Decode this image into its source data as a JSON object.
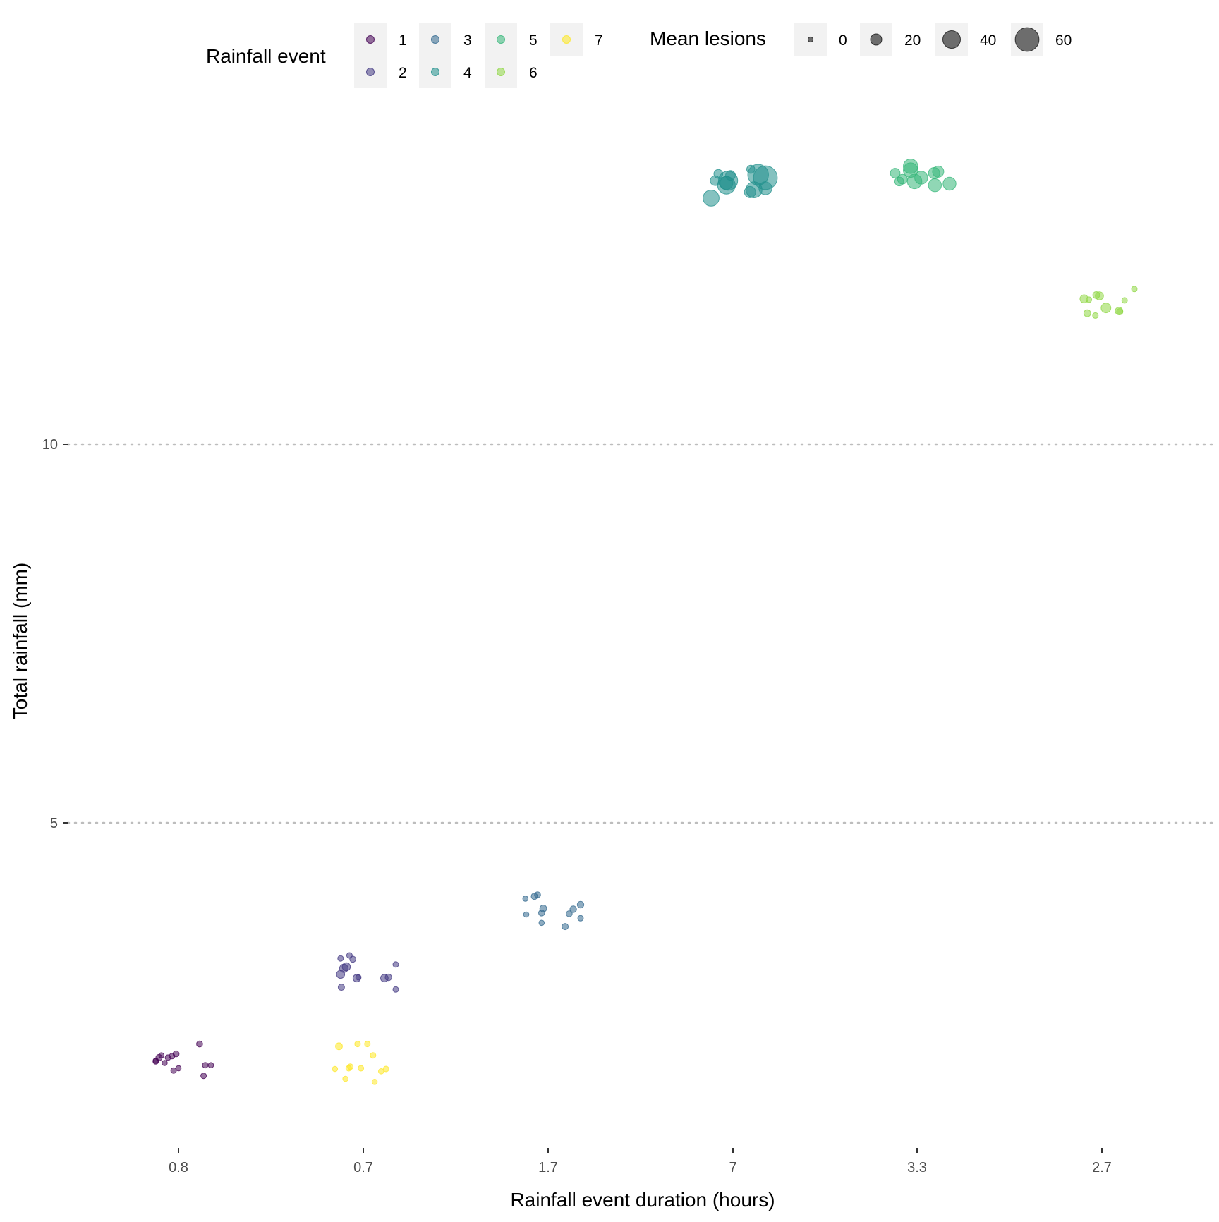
{
  "chart_data": {
    "type": "scatter",
    "title": "",
    "xlabel": "Rainfall event duration (hours)",
    "ylabel": "Total rainfall (mm)",
    "x_categories": [
      "0.8",
      "0.7",
      "1.7",
      "7",
      "3.3",
      "2.7"
    ],
    "y_ticks": [
      5,
      10
    ],
    "ylim": [
      0.5,
      15.2
    ],
    "grid": "horizontal dotted major lines only",
    "legend_position": "top",
    "color_legend": {
      "title": "Rainfall event",
      "entries": [
        {
          "label": "1",
          "color": "#440154"
        },
        {
          "label": "2",
          "color": "#443A83"
        },
        {
          "label": "3",
          "color": "#31688E"
        },
        {
          "label": "4",
          "color": "#21908C"
        },
        {
          "label": "5",
          "color": "#35B779"
        },
        {
          "label": "6",
          "color": "#8FD744"
        },
        {
          "label": "7",
          "color": "#FDE725"
        }
      ]
    },
    "size_legend": {
      "title": "Mean lesions",
      "entries": [
        {
          "label": "0",
          "value": 0
        },
        {
          "label": "20",
          "value": 20
        },
        {
          "label": "40",
          "value": 40
        },
        {
          "label": "60",
          "value": 60
        }
      ]
    },
    "series": [
      {
        "event": "1",
        "x_category": "0.8",
        "points": [
          {
            "x": 0.8,
            "y": 1.8,
            "lesions": 2
          },
          {
            "x": 0.8,
            "y": 1.95,
            "lesions": 3
          },
          {
            "x": 0.8,
            "y": 1.76,
            "lesions": 1
          },
          {
            "x": 0.8,
            "y": 1.85,
            "lesions": 2
          },
          {
            "x": 0.8,
            "y": 1.93,
            "lesions": 1
          },
          {
            "x": 0.8,
            "y": 1.9,
            "lesions": 4
          },
          {
            "x": 0.8,
            "y": 1.9,
            "lesions": 2
          },
          {
            "x": 0.8,
            "y": 1.83,
            "lesions": 1
          },
          {
            "x": 0.8,
            "y": 1.86,
            "lesions": 1
          },
          {
            "x": 0.8,
            "y": 1.8,
            "lesions": 1
          },
          {
            "x": 0.8,
            "y": 1.66,
            "lesions": 2
          },
          {
            "x": 0.8,
            "y": 1.73,
            "lesions": 2
          },
          {
            "x": 0.8,
            "y": 1.92,
            "lesions": 2
          },
          {
            "x": 0.8,
            "y": 2.08,
            "lesions": 3
          }
        ]
      },
      {
        "event": "2",
        "x_category": "0.7",
        "points": [
          {
            "x": 0.7,
            "y": 3.0,
            "lesions": 10
          },
          {
            "x": 0.7,
            "y": 3.1,
            "lesions": 10
          },
          {
            "x": 0.7,
            "y": 3.08,
            "lesions": 11
          },
          {
            "x": 0.7,
            "y": 3.2,
            "lesions": 3
          },
          {
            "x": 0.7,
            "y": 3.25,
            "lesions": 2
          },
          {
            "x": 0.7,
            "y": 3.21,
            "lesions": 2
          },
          {
            "x": 0.7,
            "y": 3.13,
            "lesions": 2
          },
          {
            "x": 0.7,
            "y": 2.96,
            "lesions": 5
          },
          {
            "x": 0.7,
            "y": 2.96,
            "lesions": 1
          },
          {
            "x": 0.7,
            "y": 2.95,
            "lesions": 8
          },
          {
            "x": 0.7,
            "y": 2.95,
            "lesions": 8
          },
          {
            "x": 0.7,
            "y": 2.83,
            "lesions": 4
          },
          {
            "x": 0.7,
            "y": 2.8,
            "lesions": 2
          }
        ]
      },
      {
        "event": "3",
        "x_category": "1.7",
        "points": [
          {
            "x": 1.7,
            "y": 4.05,
            "lesions": 3
          },
          {
            "x": 1.7,
            "y": 4.03,
            "lesions": 4
          },
          {
            "x": 1.7,
            "y": 4.0,
            "lesions": 1
          },
          {
            "x": 1.7,
            "y": 3.92,
            "lesions": 5
          },
          {
            "x": 1.7,
            "y": 3.86,
            "lesions": 5
          },
          {
            "x": 1.7,
            "y": 3.87,
            "lesions": 6
          },
          {
            "x": 1.7,
            "y": 3.81,
            "lesions": 3
          },
          {
            "x": 1.7,
            "y": 3.8,
            "lesions": 3
          },
          {
            "x": 1.7,
            "y": 3.79,
            "lesions": 1
          },
          {
            "x": 1.7,
            "y": 3.74,
            "lesions": 2
          },
          {
            "x": 1.7,
            "y": 3.68,
            "lesions": 1
          },
          {
            "x": 1.7,
            "y": 3.63,
            "lesions": 4
          }
        ]
      },
      {
        "event": "4",
        "x_category": "7",
        "points": [
          {
            "x": 7,
            "y": 13.52,
            "lesions": 60
          },
          {
            "x": 7,
            "y": 13.56,
            "lesions": 50
          },
          {
            "x": 7,
            "y": 13.48,
            "lesions": 45
          },
          {
            "x": 7,
            "y": 13.42,
            "lesions": 40
          },
          {
            "x": 7,
            "y": 13.36,
            "lesions": 35
          },
          {
            "x": 7,
            "y": 13.25,
            "lesions": 35
          },
          {
            "x": 7,
            "y": 13.38,
            "lesions": 25
          },
          {
            "x": 7,
            "y": 13.45,
            "lesions": 25
          },
          {
            "x": 7,
            "y": 13.33,
            "lesions": 20
          },
          {
            "x": 7,
            "y": 13.48,
            "lesions": 15
          },
          {
            "x": 7,
            "y": 13.55,
            "lesions": 15
          },
          {
            "x": 7,
            "y": 13.63,
            "lesions": 10
          },
          {
            "x": 7,
            "y": 13.57,
            "lesions": 12
          }
        ]
      },
      {
        "event": "5",
        "x_category": "3.3",
        "points": [
          {
            "x": 3.3,
            "y": 13.67,
            "lesions": 30
          },
          {
            "x": 3.3,
            "y": 13.6,
            "lesions": 20
          },
          {
            "x": 3.3,
            "y": 13.58,
            "lesions": 15
          },
          {
            "x": 3.3,
            "y": 13.44,
            "lesions": 25
          },
          {
            "x": 3.3,
            "y": 13.62,
            "lesions": 30
          },
          {
            "x": 3.3,
            "y": 13.58,
            "lesions": 20
          },
          {
            "x": 3.3,
            "y": 13.47,
            "lesions": 12
          },
          {
            "x": 3.3,
            "y": 13.47,
            "lesions": 30
          },
          {
            "x": 3.3,
            "y": 13.42,
            "lesions": 25
          },
          {
            "x": 3.3,
            "y": 13.5,
            "lesions": 15
          },
          {
            "x": 3.3,
            "y": 13.52,
            "lesions": 25
          }
        ]
      },
      {
        "event": "6",
        "x_category": "2.7",
        "points": [
          {
            "x": 2.7,
            "y": 12.05,
            "lesions": 2
          },
          {
            "x": 2.7,
            "y": 11.7,
            "lesions": 2
          },
          {
            "x": 2.7,
            "y": 11.76,
            "lesions": 8
          },
          {
            "x": 2.7,
            "y": 11.92,
            "lesions": 10
          },
          {
            "x": 2.7,
            "y": 11.96,
            "lesions": 10
          },
          {
            "x": 2.7,
            "y": 11.75,
            "lesions": 4
          },
          {
            "x": 2.7,
            "y": 11.73,
            "lesions": 6
          },
          {
            "x": 2.7,
            "y": 11.8,
            "lesions": 15
          },
          {
            "x": 2.7,
            "y": 11.97,
            "lesions": 6
          },
          {
            "x": 2.7,
            "y": 11.9,
            "lesions": 2
          },
          {
            "x": 2.7,
            "y": 11.91,
            "lesions": 2
          }
        ]
      },
      {
        "event": "7",
        "x_category": "0.7",
        "points": [
          {
            "x": 0.7,
            "y": 1.62,
            "lesions": 1
          },
          {
            "x": 0.7,
            "y": 1.76,
            "lesions": 2
          },
          {
            "x": 0.7,
            "y": 1.72,
            "lesions": 1
          },
          {
            "x": 0.7,
            "y": 1.76,
            "lesions": 2
          },
          {
            "x": 0.7,
            "y": 2.08,
            "lesions": 2
          },
          {
            "x": 0.7,
            "y": 2.08,
            "lesions": 2
          },
          {
            "x": 0.7,
            "y": 1.75,
            "lesions": 2
          },
          {
            "x": 0.7,
            "y": 1.78,
            "lesions": 2
          },
          {
            "x": 0.7,
            "y": 1.93,
            "lesions": 2
          },
          {
            "x": 0.7,
            "y": 1.75,
            "lesions": 1
          },
          {
            "x": 0.7,
            "y": 1.58,
            "lesions": 1
          },
          {
            "x": 0.7,
            "y": 2.05,
            "lesions": 6
          }
        ]
      }
    ]
  }
}
